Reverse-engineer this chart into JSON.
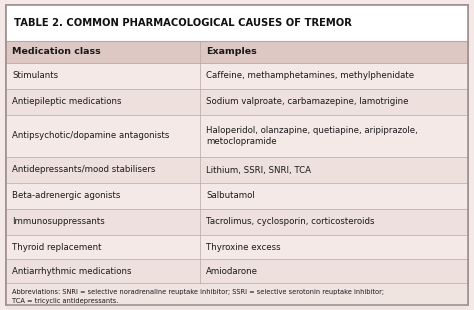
{
  "title": "TABLE 2. COMMON PHARMACOLOGICAL CAUSES OF TREMOR",
  "col1_header": "Medication class",
  "col2_header": "Examples",
  "rows": [
    [
      "Stimulants",
      "Caffeine, methamphetamines, methylphenidate"
    ],
    [
      "Antiepileptic medications",
      "Sodium valproate, carbamazepine, lamotrigine"
    ],
    [
      "Antipsychotic/dopamine antagonists",
      "Haloperidol, olanzapine, quetiapine, aripiprazole,\nmetoclopramide"
    ],
    [
      "Antidepressants/mood stabilisers",
      "Lithium, SSRI, SNRI, TCA"
    ],
    [
      "Beta-adrenergic agonists",
      "Salbutamol"
    ],
    [
      "Immunosuppressants",
      "Tacrolimus, cyclosporin, corticosteroids"
    ],
    [
      "Thyroid replacement",
      "Thyroxine excess"
    ],
    [
      "Antiarrhythmic medications",
      "Amiodarone"
    ]
  ],
  "footnote": "Abbreviations: SNRI = selective noradrenaline reuptake inhibitor; SSRI = selective serotonin reuptake inhibitor;\nTCA = tricyclic antidepressants.",
  "bg_color": "#f5e9e7",
  "header_bg": "#ddc8c4",
  "border_color": "#b8a8a5",
  "title_bg": "#ffffff",
  "text_color": "#1a1a1a",
  "title_color": "#111111",
  "row_bg_even": "#f5e9e7",
  "row_bg_odd": "#ede0dd",
  "foot_bg": "#f0e4e1",
  "outer_border": "#a09090",
  "col_split": 0.42
}
